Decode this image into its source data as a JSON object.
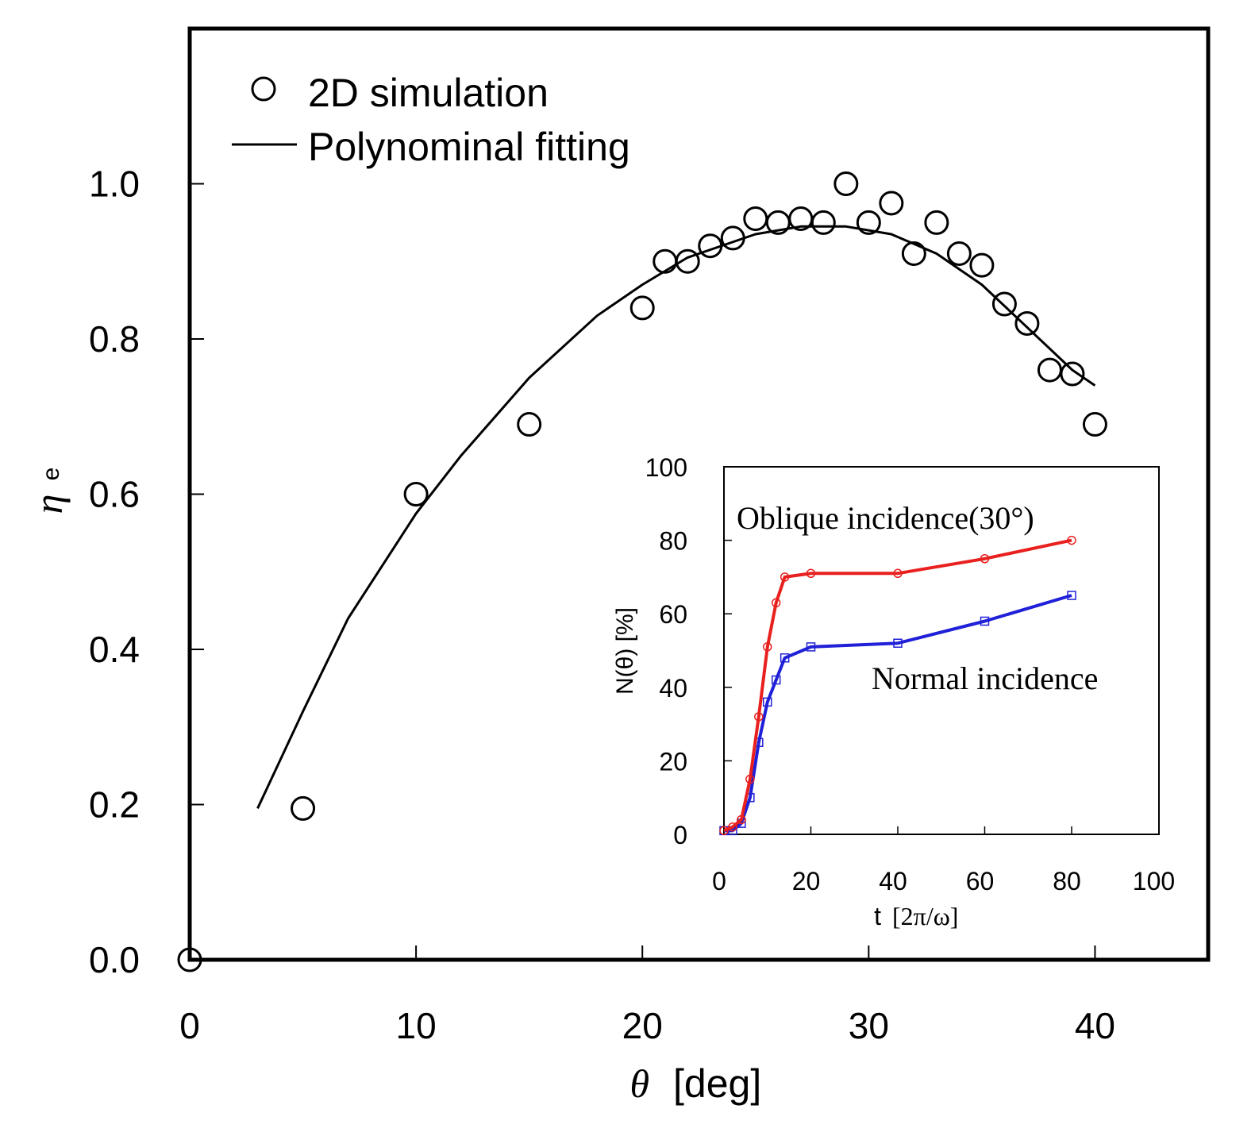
{
  "chart_data": [
    {
      "id": "main",
      "type": "scatter",
      "title": "",
      "xlabel_symbol": "θ",
      "xlabel_unit": "[deg]",
      "ylabel_symbol": "η",
      "ylabel_sub": "e",
      "xlim": [
        0,
        45
      ],
      "ylim": [
        0,
        1.2
      ],
      "xticks": [
        0,
        10,
        20,
        30,
        40
      ],
      "xtick_labels": [
        "0",
        "10",
        "20",
        "30",
        "40"
      ],
      "yticks": [
        0.0,
        0.2,
        0.4,
        0.6,
        0.8,
        1.0
      ],
      "ytick_labels": [
        "0.0",
        "0.2",
        "0.4",
        "0.6",
        "0.8",
        "1.0"
      ],
      "grid": false,
      "legend_position": "top-left",
      "legend": [
        {
          "label": "2D simulation",
          "marker": "open-circle"
        },
        {
          "label": "Polynominal fitting",
          "marker": "line"
        }
      ],
      "series": [
        {
          "name": "2D simulation",
          "kind": "points",
          "x": [
            0,
            5,
            10,
            15,
            20,
            21,
            22,
            23,
            24,
            25,
            26,
            27,
            28,
            29,
            30,
            31,
            32,
            33,
            34,
            35,
            36,
            37,
            38,
            39,
            40
          ],
          "y": [
            0.0,
            0.195,
            0.6,
            0.69,
            0.84,
            0.9,
            0.9,
            0.92,
            0.93,
            0.955,
            0.95,
            0.955,
            0.95,
            1.0,
            0.95,
            0.975,
            0.91,
            0.95,
            0.91,
            0.895,
            0.845,
            0.82,
            0.76,
            0.755,
            0.69
          ]
        },
        {
          "name": "Polynominal fitting",
          "kind": "line",
          "x": [
            3,
            5,
            7,
            9,
            10,
            12,
            15,
            18,
            20,
            22,
            25,
            27,
            29,
            31,
            33,
            35,
            37,
            39,
            40
          ],
          "y": [
            0.195,
            0.32,
            0.44,
            0.53,
            0.575,
            0.65,
            0.75,
            0.83,
            0.87,
            0.905,
            0.935,
            0.945,
            0.945,
            0.935,
            0.91,
            0.87,
            0.815,
            0.76,
            0.74
          ]
        }
      ]
    },
    {
      "id": "inset",
      "type": "line",
      "title": "",
      "xlabel_main": "t",
      "xlabel_unit": "[2π/ω]",
      "ylabel": "N(θ) [%]",
      "xlim": [
        0,
        100
      ],
      "ylim": [
        0,
        100
      ],
      "xticks": [
        0,
        20,
        40,
        60,
        80,
        100
      ],
      "xtick_labels": [
        "0",
        "20",
        "40",
        "60",
        "80",
        "100"
      ],
      "yticks": [
        0,
        20,
        40,
        60,
        80,
        100
      ],
      "ytick_labels": [
        "0",
        "20",
        "40",
        "60",
        "80",
        "100"
      ],
      "grid": false,
      "series": [
        {
          "name": "Oblique incidence(30°)",
          "color": "#e8201e",
          "marker": "circle",
          "x": [
            0,
            2,
            4,
            6,
            8,
            10,
            12,
            14,
            20,
            40,
            60,
            80
          ],
          "y": [
            1,
            2,
            4,
            15,
            32,
            51,
            63,
            70,
            71,
            71,
            75,
            80
          ]
        },
        {
          "name": "Normal incidence",
          "color": "#2020d8",
          "marker": "square",
          "x": [
            0,
            2,
            4,
            6,
            8,
            10,
            12,
            14,
            20,
            40,
            60,
            80
          ],
          "y": [
            1,
            1,
            3,
            10,
            25,
            36,
            42,
            48,
            51,
            52,
            58,
            65
          ]
        }
      ]
    }
  ]
}
